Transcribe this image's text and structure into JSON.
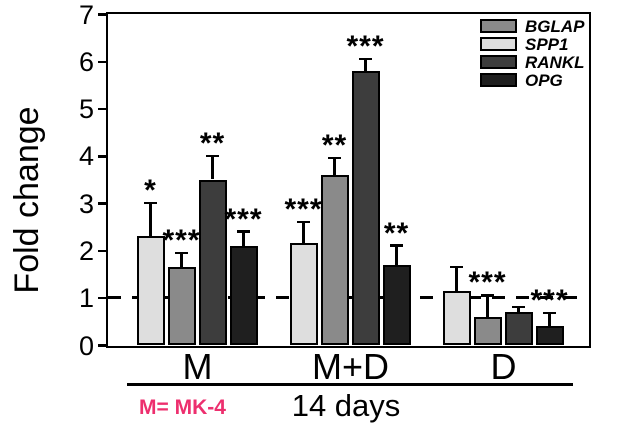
{
  "figure": {
    "ylabel": "Fold change",
    "caption": "14 days",
    "footnote": "M= MK-4",
    "footnote_color": "#ed2f6e"
  },
  "chart_data": {
    "type": "bar",
    "variant": "grouped vertical bars with SD error bars and significance stars",
    "title": "",
    "ylabel": "Fold change",
    "xlabel": "14 days",
    "annotation": {
      "text": "M= MK-4",
      "color": "#ed2f6e"
    },
    "ylim": [
      0,
      7
    ],
    "yticks": [
      0,
      1,
      2,
      3,
      4,
      5,
      6,
      7
    ],
    "grid": false,
    "reference_line": {
      "y": 1,
      "style": "dashed",
      "color": "#000000"
    },
    "legend_position": "top-right-inside",
    "legend_order": [
      "BGLAP",
      "SPP1",
      "RANKL",
      "OPG"
    ],
    "categories": [
      "M",
      "M+D",
      "D"
    ],
    "bar_order_within_group": [
      "SPP1",
      "BGLAP",
      "RANKL",
      "OPG"
    ],
    "series": [
      {
        "name": "BGLAP",
        "color": "#8a8a8a",
        "values": [
          1.65,
          3.6,
          0.6
        ],
        "errors": [
          0.3,
          0.35,
          0.45
        ],
        "significance": [
          "***",
          "**",
          "***"
        ]
      },
      {
        "name": "SPP1",
        "color": "#dedede",
        "values": [
          2.3,
          2.15,
          1.15
        ],
        "errors": [
          0.7,
          0.45,
          0.5
        ],
        "significance": [
          "*",
          "***",
          ""
        ]
      },
      {
        "name": "RANKL",
        "color": "#3d3d3d",
        "values": [
          3.5,
          5.8,
          0.7
        ],
        "errors": [
          0.5,
          0.25,
          0.1
        ],
        "significance": [
          "**",
          "***",
          ""
        ]
      },
      {
        "name": "OPG",
        "color": "#1f1f1f",
        "values": [
          2.1,
          1.7,
          0.4
        ],
        "errors": [
          0.3,
          0.4,
          0.28
        ],
        "significance": [
          "***",
          "**",
          "***"
        ]
      }
    ]
  }
}
